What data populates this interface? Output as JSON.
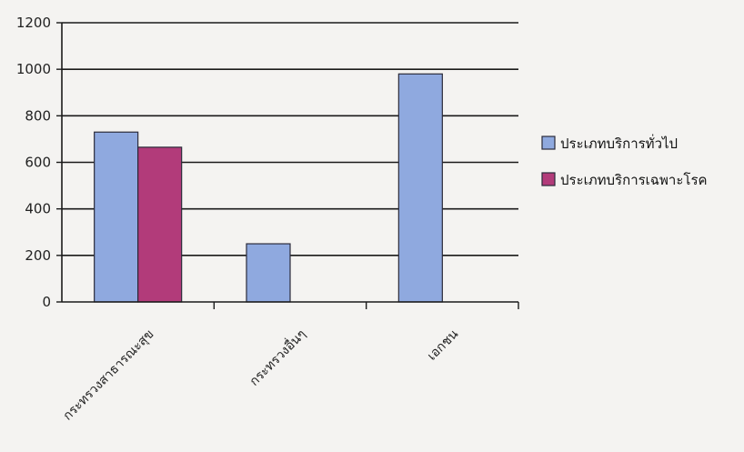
{
  "chart_data": {
    "type": "bar",
    "categories": [
      "กระทรวงสาธารณะสุข",
      "กระทรวงอื่นๆ",
      "เอกชน"
    ],
    "series": [
      {
        "name": "ประเภทบริการทั่วไป",
        "color": "#8fa9df",
        "values": [
          730,
          250,
          980
        ]
      },
      {
        "name": "ประเภทบริการเฉพาะโรค",
        "color": "#b23b7a",
        "values": [
          665,
          null,
          null
        ]
      }
    ],
    "ylim": [
      0,
      1200
    ],
    "yticks": [
      0,
      200,
      400,
      600,
      800,
      1000,
      1200
    ],
    "grid": true,
    "legend_position": "right",
    "title": "",
    "xlabel": "",
    "ylabel": ""
  }
}
